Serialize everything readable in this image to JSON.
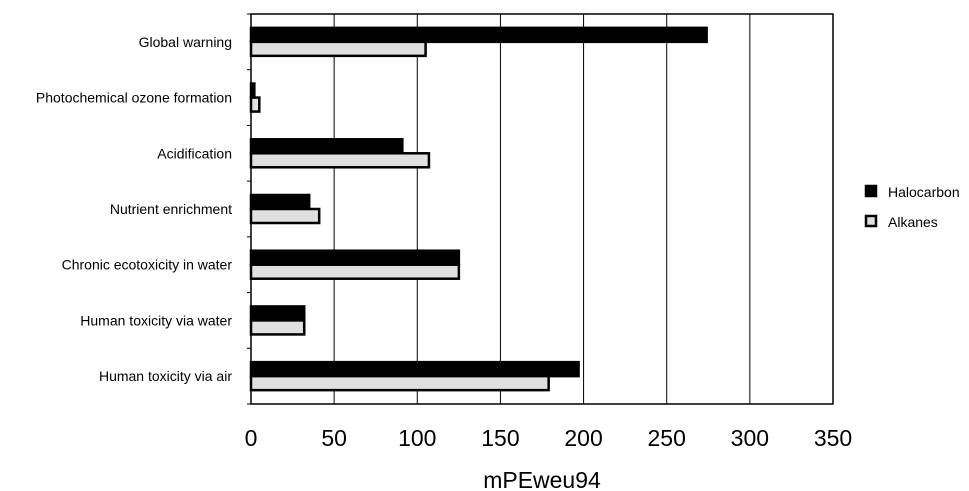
{
  "chart_data": {
    "type": "bar",
    "orientation": "horizontal",
    "categories": [
      "Global warning",
      "Photochemical ozone formation",
      "Acidification",
      "Nutrient enrichment",
      "Chronic ecotoxicity in water",
      "Human toxicity via water",
      "Human toxicity via air"
    ],
    "series": [
      {
        "name": "Halocarbon",
        "color": "#000000",
        "values": [
          274,
          2,
          91,
          35,
          125,
          32,
          197
        ]
      },
      {
        "name": "Alkanes",
        "color": "#e0e0e0",
        "values": [
          105,
          5,
          107,
          41,
          125,
          32,
          179
        ]
      }
    ],
    "title": "",
    "xlabel": "mPEweu94",
    "ylabel": "",
    "xlim": [
      0,
      350
    ],
    "xticks": [
      0,
      50,
      100,
      150,
      200,
      250,
      300,
      350
    ],
    "xtick_labels": [
      "0",
      "50",
      "100",
      "150",
      "200",
      "250",
      "300",
      "350"
    ],
    "grid": "vertical",
    "legend_position": "right"
  }
}
